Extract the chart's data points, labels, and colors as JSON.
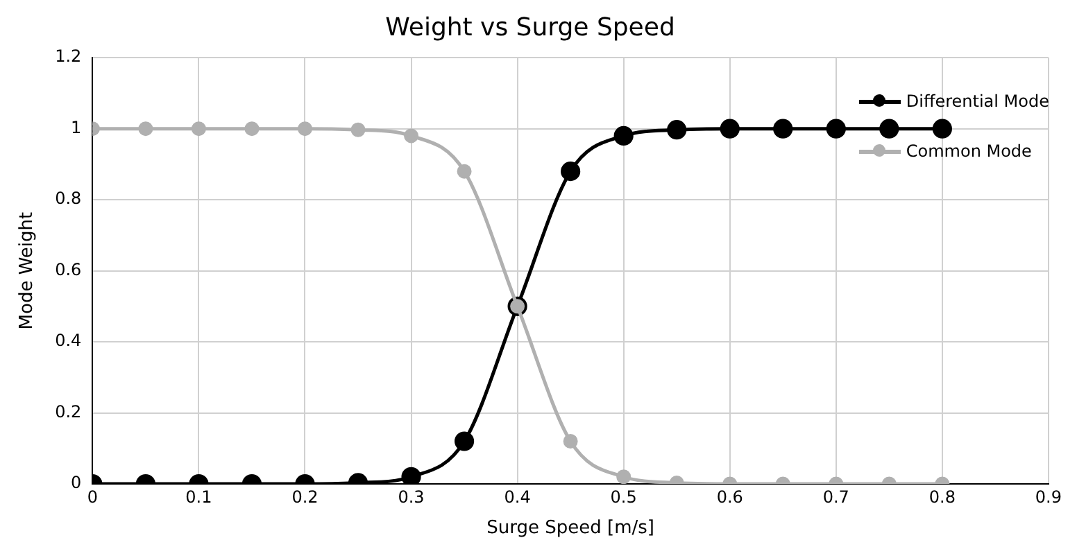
{
  "chart_data": {
    "type": "line",
    "title": "Weight vs Surge Speed",
    "xlabel": "Surge Speed [m/s]",
    "ylabel": "Mode Weight",
    "x": [
      0,
      0.05,
      0.1,
      0.15,
      0.2,
      0.25,
      0.3,
      0.35,
      0.4,
      0.45,
      0.5,
      0.55,
      0.6,
      0.65,
      0.7,
      0.75,
      0.8
    ],
    "series": [
      {
        "name": "Differential Mode",
        "color": "#000000",
        "values": [
          0,
          0,
          0,
          0,
          0,
          0.003,
          0.02,
          0.12,
          0.5,
          0.88,
          0.98,
          0.997,
          1,
          1,
          1,
          1,
          1
        ]
      },
      {
        "name": "Common Mode",
        "color": "#b0b0b0",
        "values": [
          1,
          1,
          1,
          1,
          1,
          0.997,
          0.98,
          0.88,
          0.5,
          0.12,
          0.02,
          0.003,
          0,
          0,
          0,
          0,
          0
        ]
      }
    ],
    "xlim": [
      0,
      0.9
    ],
    "xticks": [
      0,
      0.1,
      0.2,
      0.3,
      0.4,
      0.5,
      0.6,
      0.7,
      0.8,
      0.9
    ],
    "ylim": [
      0,
      1.2
    ],
    "yticks": [
      0,
      0.2,
      0.4,
      0.6,
      0.8,
      1,
      1.2
    ],
    "grid": true,
    "legend": "top right",
    "marker": "circle",
    "line_style": "solid"
  }
}
